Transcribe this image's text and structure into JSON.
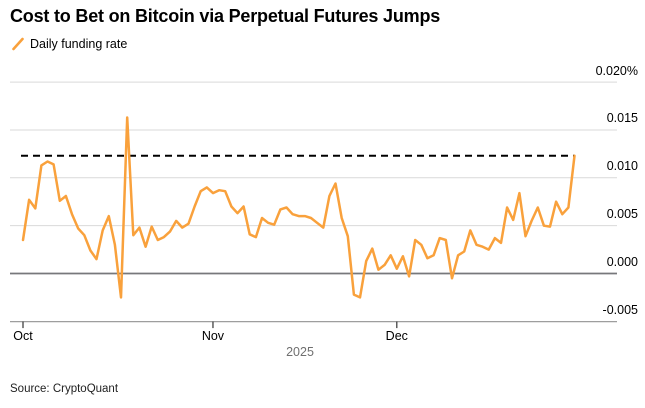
{
  "header": {
    "title": "Cost to Bet on Bitcoin via Perpetual Futures Jumps",
    "legend": {
      "label": "Daily funding rate"
    }
  },
  "x_axis_year": "2025",
  "source": "Source: CryptoQuant",
  "chart_data": {
    "type": "line",
    "title": "Cost to Bet on Bitcoin via Perpetual Futures Jumps",
    "series_name": "Daily funding rate",
    "unit": "%",
    "start_date": "2025-10-01",
    "frequency": "daily",
    "values": [
      0.0035,
      0.0077,
      0.0068,
      0.0113,
      0.0117,
      0.0114,
      0.0076,
      0.0081,
      0.0062,
      0.0047,
      0.004,
      0.0024,
      0.0015,
      0.0045,
      0.006,
      0.003,
      -0.0025,
      0.0163,
      0.004,
      0.0048,
      0.0028,
      0.0049,
      0.0035,
      0.0038,
      0.0044,
      0.0055,
      0.0048,
      0.0052,
      0.007,
      0.0086,
      0.009,
      0.0084,
      0.0087,
      0.0086,
      0.007,
      0.0063,
      0.007,
      0.0041,
      0.0038,
      0.0058,
      0.0053,
      0.0051,
      0.0067,
      0.0069,
      0.0062,
      0.006,
      0.006,
      0.0058,
      0.0053,
      0.0048,
      0.0081,
      0.0094,
      0.0058,
      0.0039,
      -0.0022,
      -0.0025,
      0.0013,
      0.0026,
      0.0004,
      0.0009,
      0.0019,
      0.0005,
      0.0018,
      -0.0003,
      0.0035,
      0.003,
      0.0016,
      0.0019,
      0.0037,
      0.0035,
      -0.0005,
      0.0019,
      0.0023,
      0.0045,
      0.003,
      0.0028,
      0.0025,
      0.0037,
      0.0032,
      0.0069,
      0.0056,
      0.0084,
      0.0039,
      0.0055,
      0.0069,
      0.005,
      0.0049,
      0.0075,
      0.0062,
      0.0069,
      0.0123
    ],
    "x_ticks": [
      {
        "label": "Oct",
        "day_index": 0
      },
      {
        "label": "Nov",
        "day_index": 31
      },
      {
        "label": "Dec",
        "day_index": 61
      }
    ],
    "y_ticks": [
      {
        "label": "0.020%",
        "value": 0.02
      },
      {
        "label": "0.015",
        "value": 0.015
      },
      {
        "label": "0.010",
        "value": 0.01
      },
      {
        "label": "0.005",
        "value": 0.005
      },
      {
        "label": "0.000",
        "value": 0.0
      },
      {
        "label": "-0.005",
        "value": -0.005
      }
    ],
    "ylim": [
      -0.0055,
      0.021
    ],
    "grid": true,
    "legend_position": "top-left",
    "reference_line": {
      "style": "dashed",
      "value": 0.0123
    },
    "colors": {
      "line": "#F9A13C",
      "grid": "#D9D9D9",
      "zero_line": "#77787B",
      "axis": "#9E9E9E",
      "tick": "#333333",
      "dashed": "#000000"
    }
  }
}
